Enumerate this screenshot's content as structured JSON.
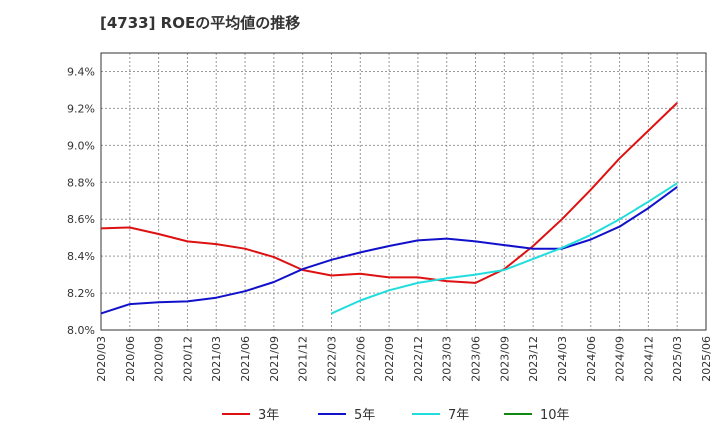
{
  "chart_data": {
    "type": "line",
    "title": "[4733]  ROEの平均値の推移",
    "xlabel": "",
    "ylabel": "",
    "ylim": [
      8.0,
      9.5
    ],
    "yticks": [
      8.0,
      8.2,
      8.4,
      8.6,
      8.8,
      9.0,
      9.2,
      9.4
    ],
    "ytick_labels": [
      "8.0%",
      "8.2%",
      "8.4%",
      "8.6%",
      "8.8%",
      "9.0%",
      "9.2%",
      "9.4%"
    ],
    "x_start": "2020/03",
    "xtick_labels": [
      "2020/03",
      "2020/06",
      "2020/09",
      "2020/12",
      "2021/03",
      "2021/06",
      "2021/09",
      "2021/12",
      "2022/03",
      "2022/06",
      "2022/09",
      "2022/12",
      "2023/03",
      "2023/06",
      "2023/09",
      "2023/12",
      "2024/03",
      "2024/06",
      "2024/09",
      "2024/12",
      "2025/03",
      "2025/06"
    ],
    "grid": true,
    "legend_position": "bottom",
    "series": [
      {
        "name": "3年",
        "color": "#dd1111",
        "points": [
          [
            "2020/03",
            8.55
          ],
          [
            "2020/06",
            8.555
          ],
          [
            "2020/09",
            8.52
          ],
          [
            "2020/12",
            8.48
          ],
          [
            "2021/03",
            8.465
          ],
          [
            "2021/06",
            8.44
          ],
          [
            "2021/09",
            8.395
          ],
          [
            "2021/12",
            8.325
          ],
          [
            "2022/03",
            8.295
          ],
          [
            "2022/06",
            8.305
          ],
          [
            "2022/09",
            8.285
          ],
          [
            "2022/12",
            8.285
          ],
          [
            "2023/03",
            8.265
          ],
          [
            "2023/06",
            8.255
          ],
          [
            "2023/09",
            8.33
          ],
          [
            "2023/12",
            8.455
          ],
          [
            "2024/03",
            8.6
          ],
          [
            "2024/06",
            8.76
          ],
          [
            "2024/09",
            8.93
          ],
          [
            "2024/12",
            9.08
          ],
          [
            "2025/03",
            9.23
          ]
        ]
      },
      {
        "name": "5年",
        "color": "#1111cc",
        "points": [
          [
            "2020/03",
            8.09
          ],
          [
            "2020/06",
            8.14
          ],
          [
            "2020/09",
            8.15
          ],
          [
            "2020/12",
            8.155
          ],
          [
            "2021/03",
            8.175
          ],
          [
            "2021/06",
            8.21
          ],
          [
            "2021/09",
            8.26
          ],
          [
            "2021/12",
            8.33
          ],
          [
            "2022/03",
            8.38
          ],
          [
            "2022/06",
            8.42
          ],
          [
            "2022/09",
            8.455
          ],
          [
            "2022/12",
            8.485
          ],
          [
            "2023/03",
            8.495
          ],
          [
            "2023/06",
            8.48
          ],
          [
            "2023/09",
            8.46
          ],
          [
            "2023/12",
            8.44
          ],
          [
            "2024/03",
            8.44
          ],
          [
            "2024/06",
            8.49
          ],
          [
            "2024/09",
            8.56
          ],
          [
            "2024/12",
            8.66
          ],
          [
            "2025/03",
            8.775
          ]
        ]
      },
      {
        "name": "7年",
        "color": "#22dddd",
        "points": [
          [
            "2022/03",
            8.09
          ],
          [
            "2022/06",
            8.16
          ],
          [
            "2022/09",
            8.215
          ],
          [
            "2022/12",
            8.255
          ],
          [
            "2023/03",
            8.28
          ],
          [
            "2023/06",
            8.3
          ],
          [
            "2023/09",
            8.325
          ],
          [
            "2023/12",
            8.385
          ],
          [
            "2024/03",
            8.445
          ],
          [
            "2024/06",
            8.515
          ],
          [
            "2024/09",
            8.6
          ],
          [
            "2024/12",
            8.695
          ],
          [
            "2025/03",
            8.795
          ]
        ]
      },
      {
        "name": "10年",
        "color": "#118811",
        "points": []
      }
    ]
  }
}
